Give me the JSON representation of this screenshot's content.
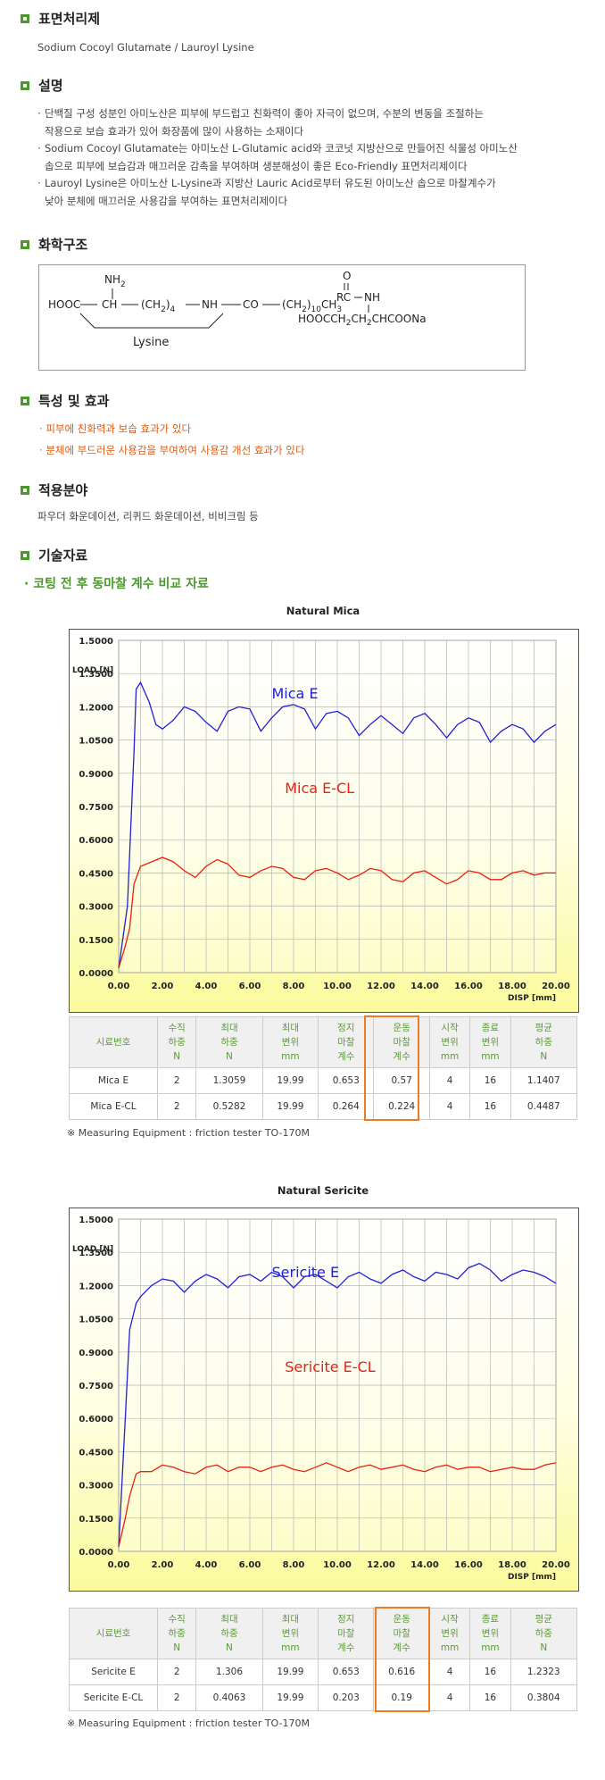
{
  "sections": {
    "s1": {
      "title": "표면처리제",
      "text": "Sodium Cocoyl Glutamate / Lauroyl Lysine"
    },
    "s2": {
      "title": "설명",
      "lines": [
        "단백질 구성 성분인 아미노산은 피부에 부드럽고 친화력이 좋아 자극이 없으며, 수분의 변동을 조절하는",
        "작용으로 보습 효과가 있어 화장품에 많이 사용하는 소재이다",
        "Sodium Cocoyl Glutamate는 아미노산 L-Glutamic acid와 코코넛 지방산으로 만들어진 식물성 아미노산",
        "솝으로 피부에 보습감과 매끄러운 감촉을 부여하며 생분해성이 좋은 Eco-Friendly 표면처리제이다",
        "Lauroyl Lysine은 아미노산 L-Lysine과 지방산 Lauric Acid로부터 유도된 아미노산 솝으로 마찰계수가",
        "낮아 분체에 매끄러운 사용감을 부여하는 표면처리제이다"
      ]
    },
    "s3": {
      "title": "화학구조",
      "lysine": {
        "nh2": "NH",
        "nh2_sub": "2",
        "hooc": "HOOC",
        "ch": "CH",
        "ch2_4": "(CH",
        "sub2": "2",
        "sub4": "4",
        "nh": "NH",
        "co": "CO",
        "ch2_10": "(CH",
        "sub10": "10",
        "ch3": "CH",
        "sub3": "3",
        "name": "Lysine"
      },
      "glutamate": {
        "o": "O",
        "rc": "RC",
        "nh": "NH",
        "chain": "HOOCCH",
        "sub2a": "2",
        "ch": "CH",
        "sub2b": "2",
        "tail": "CHCOONa"
      }
    },
    "s4": {
      "title": "특성 및 효과",
      "items": [
        "피부에 친화력과 보습 효과가 있다",
        "분체에 부드러운 사용감을 부여하여 사용감 개선 효과가 있다"
      ]
    },
    "s5": {
      "title": "적용분야",
      "text": "파우더 화운데이션, 리퀴드 화운데이션, 비비크림 등"
    },
    "s6": {
      "title": "기술자료",
      "subtitle": "· 코팅 전 후 동마찰 계수 비교 자료"
    }
  },
  "table_headers": [
    "시료번호",
    "수직\n하중\nN",
    "최대\n하중\nN",
    "최대\n변위\nmm",
    "정지\n마찰\n계수",
    "운동\n마찰\n계수",
    "시작\n변위\nmm",
    "종료\n변위\nmm",
    "평균\n하중\nN"
  ],
  "note": "※ Measuring Equipment : friction tester TO-170M",
  "chart_colors": {
    "series_e": "#2020d8",
    "series_ecl": "#e82010",
    "frame_bg_bottom": "#fbfb9c",
    "highlight": "#f07a20"
  },
  "chart_data": [
    {
      "type": "line",
      "title": "Natural Mica",
      "xlabel": "DISP [mm]",
      "ylabel": "LOAD [N]",
      "xlim": [
        0,
        20
      ],
      "ylim": [
        0,
        1.5
      ],
      "x_ticks": [
        "0.00",
        "2.00",
        "4.00",
        "6.00",
        "8.00",
        "10.00",
        "12.00",
        "14.00",
        "16.00",
        "18.00",
        "20.00"
      ],
      "y_ticks": [
        "0.0000",
        "0.1500",
        "0.3000",
        "0.4500",
        "0.6000",
        "0.7500",
        "0.9000",
        "1.0500",
        "1.2000",
        "1.3500",
        "1.5000"
      ],
      "grid": true,
      "series": [
        {
          "name": "Mica E",
          "x": [
            0,
            0.4,
            0.7,
            0.8,
            1.0,
            1.4,
            1.7,
            2.0,
            2.5,
            3.0,
            3.5,
            4.0,
            4.5,
            5.0,
            5.5,
            6.0,
            6.5,
            7.0,
            7.5,
            8.0,
            8.5,
            9.0,
            9.5,
            10.0,
            10.5,
            11.0,
            11.5,
            12.0,
            12.5,
            13.0,
            13.5,
            14.0,
            14.5,
            15.0,
            15.5,
            16.0,
            16.5,
            17.0,
            17.5,
            18.0,
            18.5,
            19.0,
            19.5,
            20.0
          ],
          "y": [
            0.02,
            0.3,
            1.0,
            1.28,
            1.31,
            1.22,
            1.12,
            1.1,
            1.14,
            1.2,
            1.18,
            1.13,
            1.09,
            1.18,
            1.2,
            1.19,
            1.09,
            1.15,
            1.2,
            1.21,
            1.19,
            1.1,
            1.17,
            1.18,
            1.15,
            1.07,
            1.12,
            1.16,
            1.12,
            1.08,
            1.15,
            1.17,
            1.12,
            1.06,
            1.12,
            1.15,
            1.13,
            1.04,
            1.09,
            1.12,
            1.1,
            1.04,
            1.09,
            1.12
          ]
        },
        {
          "name": "Mica E-CL",
          "x": [
            0,
            0.3,
            0.5,
            0.7,
            1.0,
            1.5,
            2.0,
            2.5,
            3.0,
            3.5,
            4.0,
            4.5,
            5.0,
            5.5,
            6.0,
            6.5,
            7.0,
            7.5,
            8.0,
            8.5,
            9.0,
            9.5,
            10.0,
            10.5,
            11.0,
            11.5,
            12.0,
            12.5,
            13.0,
            13.5,
            14.0,
            14.5,
            15.0,
            15.5,
            16.0,
            16.5,
            17.0,
            17.5,
            18.0,
            18.5,
            19.0,
            19.5,
            20.0
          ],
          "y": [
            0.02,
            0.12,
            0.2,
            0.4,
            0.48,
            0.5,
            0.52,
            0.5,
            0.46,
            0.43,
            0.48,
            0.51,
            0.49,
            0.44,
            0.43,
            0.46,
            0.48,
            0.47,
            0.43,
            0.42,
            0.46,
            0.47,
            0.45,
            0.42,
            0.44,
            0.47,
            0.46,
            0.42,
            0.41,
            0.45,
            0.46,
            0.43,
            0.4,
            0.42,
            0.46,
            0.45,
            0.42,
            0.42,
            0.45,
            0.46,
            0.44,
            0.45,
            0.45
          ]
        }
      ],
      "labels": [
        {
          "text": "Mica  E",
          "series": 0
        },
        {
          "text": "Mica  E-CL",
          "series": 1
        }
      ],
      "table": [
        [
          "Mica E",
          "2",
          "1.3059",
          "19.99",
          "0.653",
          "0.57",
          "4",
          "16",
          "1.1407"
        ],
        [
          "Mica E-CL",
          "2",
          "0.5282",
          "19.99",
          "0.264",
          "0.224",
          "4",
          "16",
          "0.4487"
        ]
      ]
    },
    {
      "type": "line",
      "title": "Natural Sericite",
      "xlabel": "DISP [mm]",
      "ylabel": "LOAD [N]",
      "xlim": [
        0,
        20
      ],
      "ylim": [
        0,
        1.5
      ],
      "x_ticks": [
        "0.00",
        "2.00",
        "4.00",
        "6.00",
        "8.00",
        "10.00",
        "12.00",
        "14.00",
        "16.00",
        "18.00",
        "20.00"
      ],
      "y_ticks": [
        "0.0000",
        "0.1500",
        "0.3000",
        "0.4500",
        "0.6000",
        "0.7500",
        "0.9000",
        "1.0500",
        "1.2000",
        "1.3500",
        "1.5000"
      ],
      "grid": true,
      "series": [
        {
          "name": "Sericite E",
          "x": [
            0,
            0.3,
            0.5,
            0.8,
            1.0,
            1.5,
            2.0,
            2.5,
            3.0,
            3.5,
            4.0,
            4.5,
            5.0,
            5.5,
            6.0,
            6.5,
            7.0,
            7.5,
            8.0,
            8.5,
            9.0,
            9.5,
            10.0,
            10.5,
            11.0,
            11.5,
            12.0,
            12.5,
            13.0,
            13.5,
            14.0,
            14.5,
            15.0,
            15.5,
            16.0,
            16.5,
            17.0,
            17.5,
            18.0,
            18.5,
            19.0,
            19.5,
            20.0
          ],
          "y": [
            0.02,
            0.6,
            1.0,
            1.12,
            1.15,
            1.2,
            1.23,
            1.22,
            1.17,
            1.22,
            1.25,
            1.23,
            1.19,
            1.24,
            1.25,
            1.22,
            1.26,
            1.24,
            1.19,
            1.24,
            1.25,
            1.22,
            1.19,
            1.24,
            1.26,
            1.23,
            1.21,
            1.25,
            1.27,
            1.24,
            1.22,
            1.26,
            1.25,
            1.23,
            1.28,
            1.3,
            1.27,
            1.22,
            1.25,
            1.27,
            1.26,
            1.24,
            1.21
          ]
        },
        {
          "name": "Sericite E-CL",
          "x": [
            0,
            0.3,
            0.5,
            0.8,
            1.0,
            1.5,
            2.0,
            2.5,
            3.0,
            3.5,
            4.0,
            4.5,
            5.0,
            5.5,
            6.0,
            6.5,
            7.0,
            7.5,
            8.0,
            8.5,
            9.0,
            9.5,
            10.0,
            10.5,
            11.0,
            11.5,
            12.0,
            12.5,
            13.0,
            13.5,
            14.0,
            14.5,
            15.0,
            15.5,
            16.0,
            16.5,
            17.0,
            17.5,
            18.0,
            18.5,
            19.0,
            19.5,
            20.0
          ],
          "y": [
            0.02,
            0.15,
            0.25,
            0.35,
            0.36,
            0.36,
            0.39,
            0.38,
            0.36,
            0.35,
            0.38,
            0.39,
            0.36,
            0.38,
            0.38,
            0.36,
            0.38,
            0.39,
            0.37,
            0.36,
            0.38,
            0.4,
            0.38,
            0.36,
            0.38,
            0.39,
            0.37,
            0.38,
            0.39,
            0.37,
            0.36,
            0.38,
            0.39,
            0.37,
            0.38,
            0.38,
            0.36,
            0.37,
            0.38,
            0.37,
            0.37,
            0.39,
            0.4
          ]
        }
      ],
      "labels": [
        {
          "text": "Sericite  E",
          "series": 0
        },
        {
          "text": "Sericite  E-CL",
          "series": 1
        }
      ],
      "table": [
        [
          "Sericite E",
          "2",
          "1.306",
          "19.99",
          "0.653",
          "0.616",
          "4",
          "16",
          "1.2323"
        ],
        [
          "Sericite E-CL",
          "2",
          "0.4063",
          "19.99",
          "0.203",
          "0.19",
          "4",
          "16",
          "0.3804"
        ]
      ]
    }
  ]
}
